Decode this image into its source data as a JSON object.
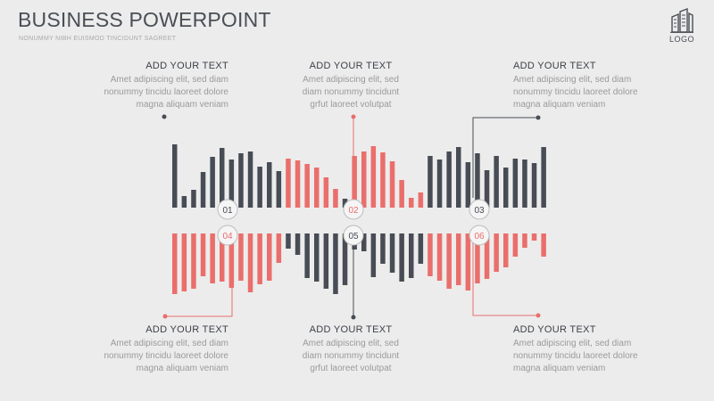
{
  "header": {
    "title": "BUSINESS POWERPOINT",
    "subtitle": "NONUMMY NIBH EUISMOD TINCIDUNT SAGREET",
    "logo_text": "LOGO",
    "logo_icon": "building-icon"
  },
  "text_blocks": [
    {
      "heading": "ADD YOUR TEXT",
      "lines": [
        "Amet adipiscing elit, sed diam",
        "nonummy tincidu laoreet dolore",
        "magna aliquam veniam"
      ]
    },
    {
      "heading": "ADD YOUR TEXT",
      "lines": [
        "Amet adipiscing elit, sed",
        "diam nonummy tincidunt",
        "grfut laoreet volutpat"
      ]
    },
    {
      "heading": "ADD YOUR TEXT",
      "lines": [
        "Amet adipiscing elit, sed diam",
        "nonummy tincidu laoreet dolore",
        "magna aliquam veniam"
      ]
    },
    {
      "heading": "ADD YOUR TEXT",
      "lines": [
        "Amet adipiscing elit, sed diam",
        "nonummy tincidu laoreet dolore",
        "magna aliquam veniam"
      ]
    },
    {
      "heading": "ADD YOUR TEXT",
      "lines": [
        "Amet adipiscing elit, sed",
        "diam nonummy tincidunt",
        "grfut laoreet volutpat"
      ]
    },
    {
      "heading": "ADD YOUR TEXT",
      "lines": [
        "Amet adipiscing elit, sed diam",
        "nonummy tincidu laoreet dolore",
        "magna aliquam veniam"
      ]
    }
  ],
  "markers": {
    "upper": [
      "01",
      "02",
      "03"
    ],
    "lower": [
      "04",
      "05",
      "06"
    ]
  },
  "colors": {
    "dark": "#474c55",
    "red": "#ea6e6b",
    "text": "#9a9a9a",
    "heading": "#3d4148"
  },
  "bars": {
    "top": [
      {
        "v": 71,
        "c": "dark"
      },
      {
        "v": 13,
        "c": "dark"
      },
      {
        "v": 20,
        "c": "dark"
      },
      {
        "v": 40,
        "c": "dark"
      },
      {
        "v": 57,
        "c": "dark"
      },
      {
        "v": 67,
        "c": "dark"
      },
      {
        "v": 54,
        "c": "dark"
      },
      {
        "v": 61,
        "c": "dark"
      },
      {
        "v": 63,
        "c": "dark"
      },
      {
        "v": 46,
        "c": "dark"
      },
      {
        "v": 51,
        "c": "dark"
      },
      {
        "v": 41,
        "c": "dark"
      },
      {
        "v": 55,
        "c": "red"
      },
      {
        "v": 53,
        "c": "red"
      },
      {
        "v": 49,
        "c": "red"
      },
      {
        "v": 45,
        "c": "red"
      },
      {
        "v": 34,
        "c": "red"
      },
      {
        "v": 21,
        "c": "red"
      },
      {
        "v": 10,
        "c": "dark"
      },
      {
        "v": 58,
        "c": "red"
      },
      {
        "v": 63,
        "c": "red"
      },
      {
        "v": 69,
        "c": "red"
      },
      {
        "v": 62,
        "c": "red"
      },
      {
        "v": 52,
        "c": "red"
      },
      {
        "v": 31,
        "c": "red"
      },
      {
        "v": 11,
        "c": "red"
      },
      {
        "v": 17,
        "c": "red"
      },
      {
        "v": 58,
        "c": "dark"
      },
      {
        "v": 54,
        "c": "dark"
      },
      {
        "v": 63,
        "c": "dark"
      },
      {
        "v": 68,
        "c": "dark"
      },
      {
        "v": 51,
        "c": "dark"
      },
      {
        "v": 61,
        "c": "dark"
      },
      {
        "v": 42,
        "c": "dark"
      },
      {
        "v": 58,
        "c": "dark"
      },
      {
        "v": 45,
        "c": "dark"
      },
      {
        "v": 55,
        "c": "dark"
      },
      {
        "v": 54,
        "c": "dark"
      },
      {
        "v": 50,
        "c": "dark"
      },
      {
        "v": 68,
        "c": "dark"
      }
    ],
    "bottom": [
      {
        "v": 68,
        "c": "red"
      },
      {
        "v": 65,
        "c": "red"
      },
      {
        "v": 62,
        "c": "red"
      },
      {
        "v": 48,
        "c": "red"
      },
      {
        "v": 56,
        "c": "red"
      },
      {
        "v": 54,
        "c": "red"
      },
      {
        "v": 61,
        "c": "red"
      },
      {
        "v": 53,
        "c": "red"
      },
      {
        "v": 66,
        "c": "red"
      },
      {
        "v": 57,
        "c": "red"
      },
      {
        "v": 53,
        "c": "red"
      },
      {
        "v": 33,
        "c": "red"
      },
      {
        "v": 17,
        "c": "dark"
      },
      {
        "v": 24,
        "c": "dark"
      },
      {
        "v": 50,
        "c": "dark"
      },
      {
        "v": 54,
        "c": "dark"
      },
      {
        "v": 62,
        "c": "dark"
      },
      {
        "v": 68,
        "c": "dark"
      },
      {
        "v": 58,
        "c": "dark"
      },
      {
        "v": 18,
        "c": "dark"
      },
      {
        "v": 20,
        "c": "dark"
      },
      {
        "v": 49,
        "c": "dark"
      },
      {
        "v": 34,
        "c": "dark"
      },
      {
        "v": 44,
        "c": "dark"
      },
      {
        "v": 54,
        "c": "dark"
      },
      {
        "v": 50,
        "c": "dark"
      },
      {
        "v": 34,
        "c": "dark"
      },
      {
        "v": 48,
        "c": "red"
      },
      {
        "v": 53,
        "c": "red"
      },
      {
        "v": 62,
        "c": "red"
      },
      {
        "v": 58,
        "c": "red"
      },
      {
        "v": 64,
        "c": "red"
      },
      {
        "v": 56,
        "c": "red"
      },
      {
        "v": 51,
        "c": "red"
      },
      {
        "v": 43,
        "c": "red"
      },
      {
        "v": 38,
        "c": "red"
      },
      {
        "v": 26,
        "c": "red"
      },
      {
        "v": 16,
        "c": "red"
      },
      {
        "v": 8,
        "c": "red"
      },
      {
        "v": 26,
        "c": "red"
      }
    ]
  }
}
